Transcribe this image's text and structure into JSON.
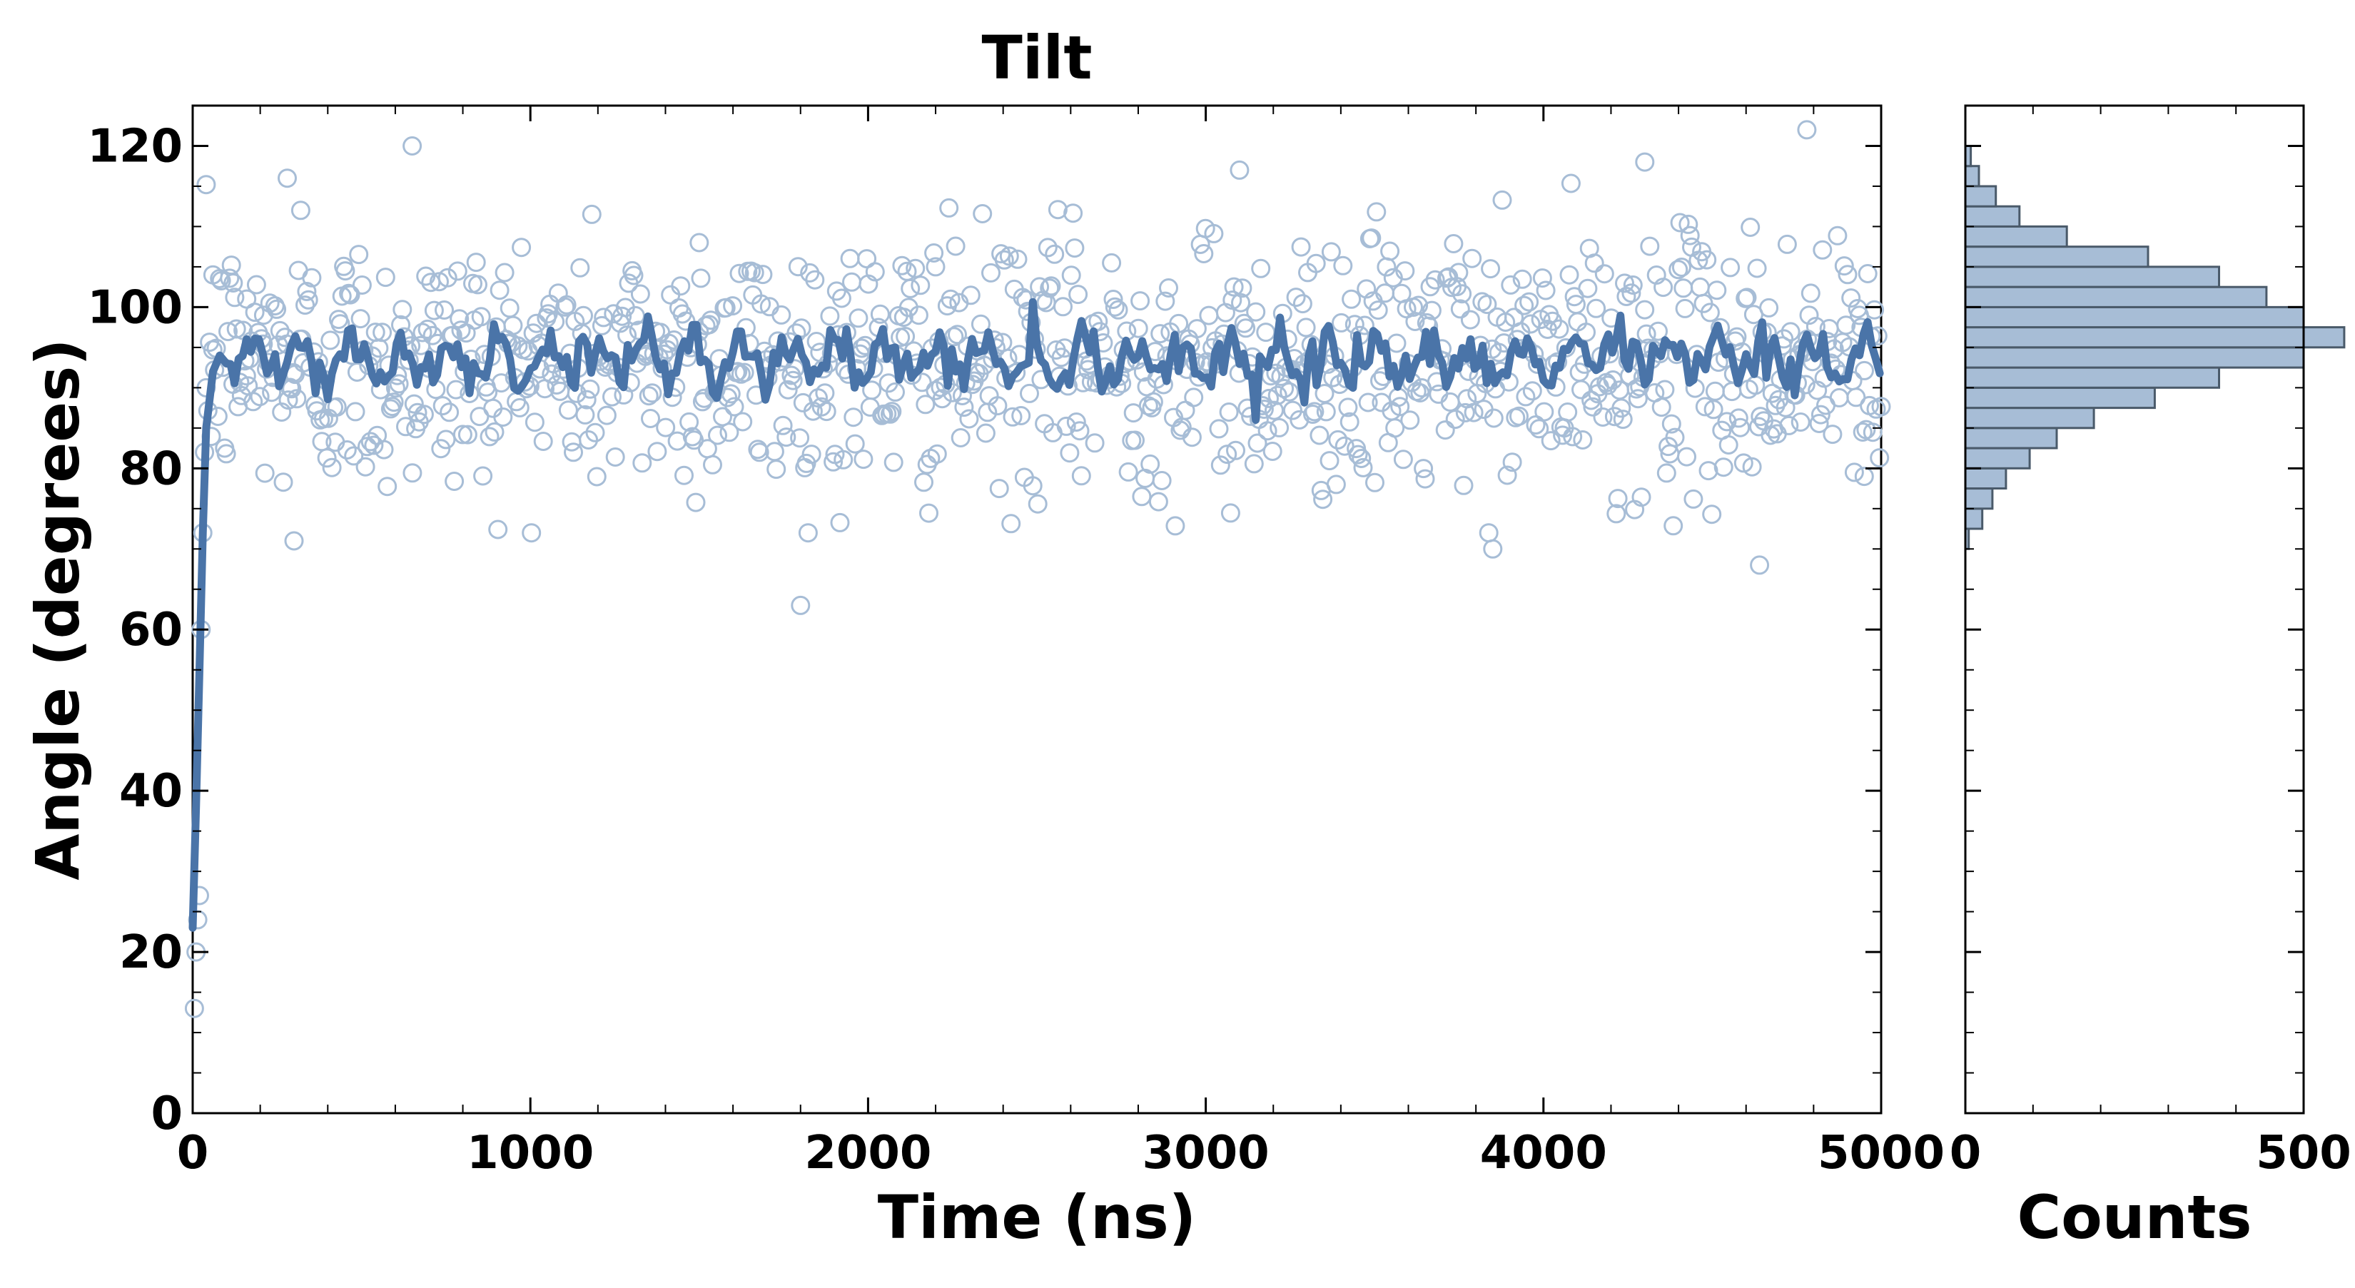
{
  "chart_data": [
    {
      "type": "scatter",
      "title": "Tilt",
      "xlabel": "Time (ns)",
      "ylabel": "Angle (degrees)",
      "xlim": [
        0,
        5000
      ],
      "ylim": [
        0,
        125
      ],
      "xticks": [
        0,
        1000,
        2000,
        3000,
        4000,
        5000
      ],
      "yticks": [
        0,
        20,
        40,
        60,
        80,
        100,
        120
      ],
      "grid": false,
      "legend": "none",
      "colors": {
        "marker": "#a7bdd6",
        "line": "#4a74a8"
      },
      "series": [
        {
          "type": "scatter",
          "marker": "open-circle",
          "description": "per-frame angle samples",
          "x": [
            5,
            10,
            15,
            20,
            25,
            30,
            35,
            40,
            60,
            120,
            160,
            210,
            280,
            300,
            320,
            650,
            1800,
            3850,
            4640,
            4780,
            4950,
            1500,
            2200,
            3100,
            4300
          ],
          "y": [
            13,
            20,
            24,
            27,
            60,
            72,
            82,
            90,
            104,
            103,
            101,
            99,
            116,
            71,
            112,
            120,
            63,
            70,
            68,
            122,
            79,
            108,
            105,
            117,
            118
          ],
          "bulk": {
            "count": 1000,
            "x_range": [
              40,
              5000
            ],
            "mean": 93,
            "sd": 8
          }
        },
        {
          "type": "line",
          "description": "running average",
          "x": [
            0,
            10,
            20,
            30,
            40,
            60,
            80,
            100
          ],
          "y": [
            23,
            38,
            55,
            72,
            85,
            92,
            94,
            93
          ],
          "steady": {
            "x_range": [
              100,
              5000
            ],
            "mean": 93.5,
            "amplitude": 4
          }
        }
      ]
    },
    {
      "type": "bar",
      "orientation": "horizontal",
      "xlabel": "Counts",
      "ylabel": "",
      "xlim": [
        0,
        500
      ],
      "ylim": [
        0,
        125
      ],
      "xticks": [
        0,
        500
      ],
      "grid": false,
      "legend": "none",
      "colors": {
        "fill": "#a7bdd6",
        "edge": "#4a5a6a"
      },
      "bin_edges": [
        70,
        72.5,
        75,
        77.5,
        80,
        82.5,
        85,
        87.5,
        90,
        92.5,
        95,
        97.5,
        100,
        102.5,
        105,
        107.5,
        110,
        112.5,
        115,
        117.5,
        120
      ],
      "counts": [
        5,
        25,
        40,
        60,
        95,
        135,
        190,
        280,
        375,
        500,
        560,
        500,
        445,
        375,
        270,
        150,
        80,
        45,
        20,
        8
      ]
    }
  ]
}
